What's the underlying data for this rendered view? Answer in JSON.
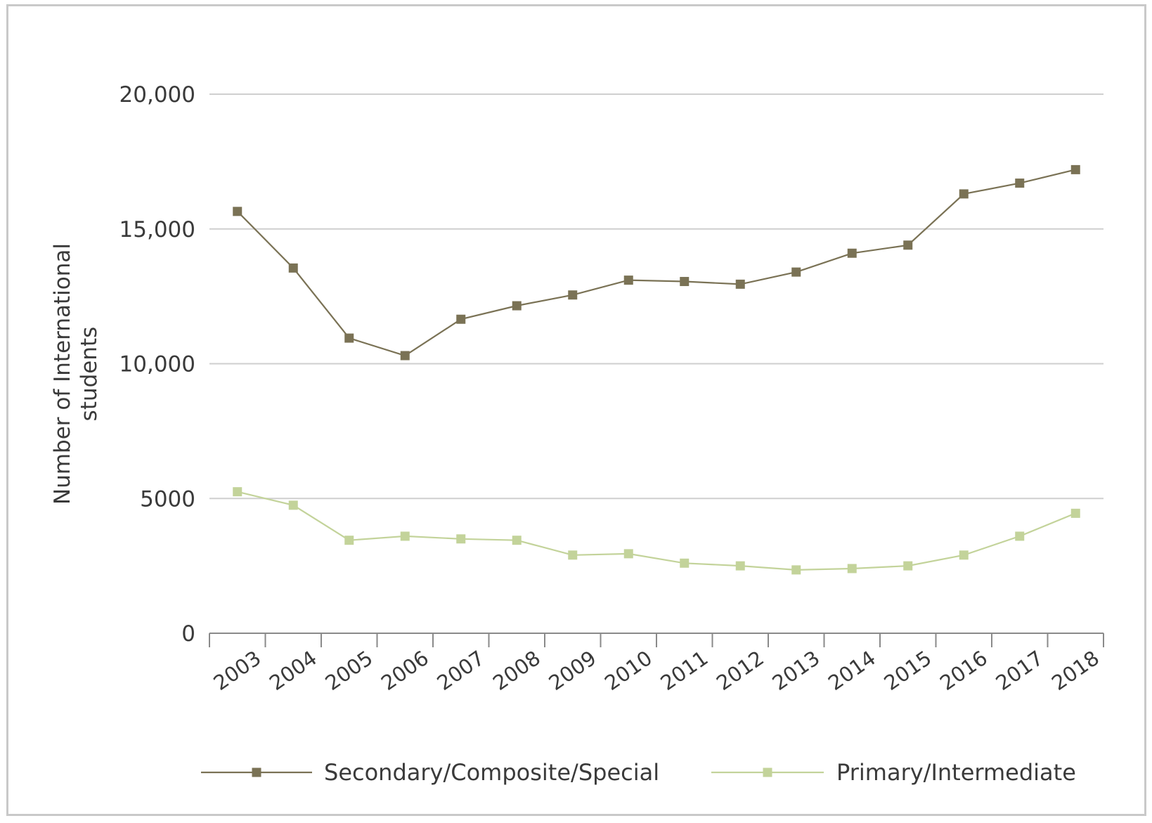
{
  "chart_data": {
    "type": "line",
    "x": [
      "2003",
      "2004",
      "2005",
      "2006",
      "2007",
      "2008",
      "2009",
      "2010",
      "2011",
      "2012",
      "2013",
      "2014",
      "2015",
      "2016",
      "2017",
      "2018"
    ],
    "ylabel_lines": [
      "Number of  International",
      "students"
    ],
    "ylim": [
      0,
      20000
    ],
    "yticks": [
      0,
      5000,
      10000,
      15000,
      20000
    ],
    "ytick_labels": [
      "0",
      "5000",
      "10,000",
      "15,000",
      "20,000"
    ],
    "grid": true,
    "legend_position": "bottom",
    "series": [
      {
        "name": "Secondary/Composite/Special",
        "color": "#7a7255",
        "values": [
          15650,
          13550,
          10950,
          10300,
          11650,
          12150,
          12550,
          13100,
          13050,
          12950,
          13400,
          14100,
          14400,
          16300,
          16700,
          17200
        ]
      },
      {
        "name": "Primary/Intermediate",
        "color": "#c3d39a",
        "values": [
          5250,
          4750,
          3450,
          3600,
          3500,
          3450,
          2900,
          2950,
          2600,
          2500,
          2350,
          2400,
          2500,
          2900,
          3600,
          4450
        ]
      }
    ]
  }
}
